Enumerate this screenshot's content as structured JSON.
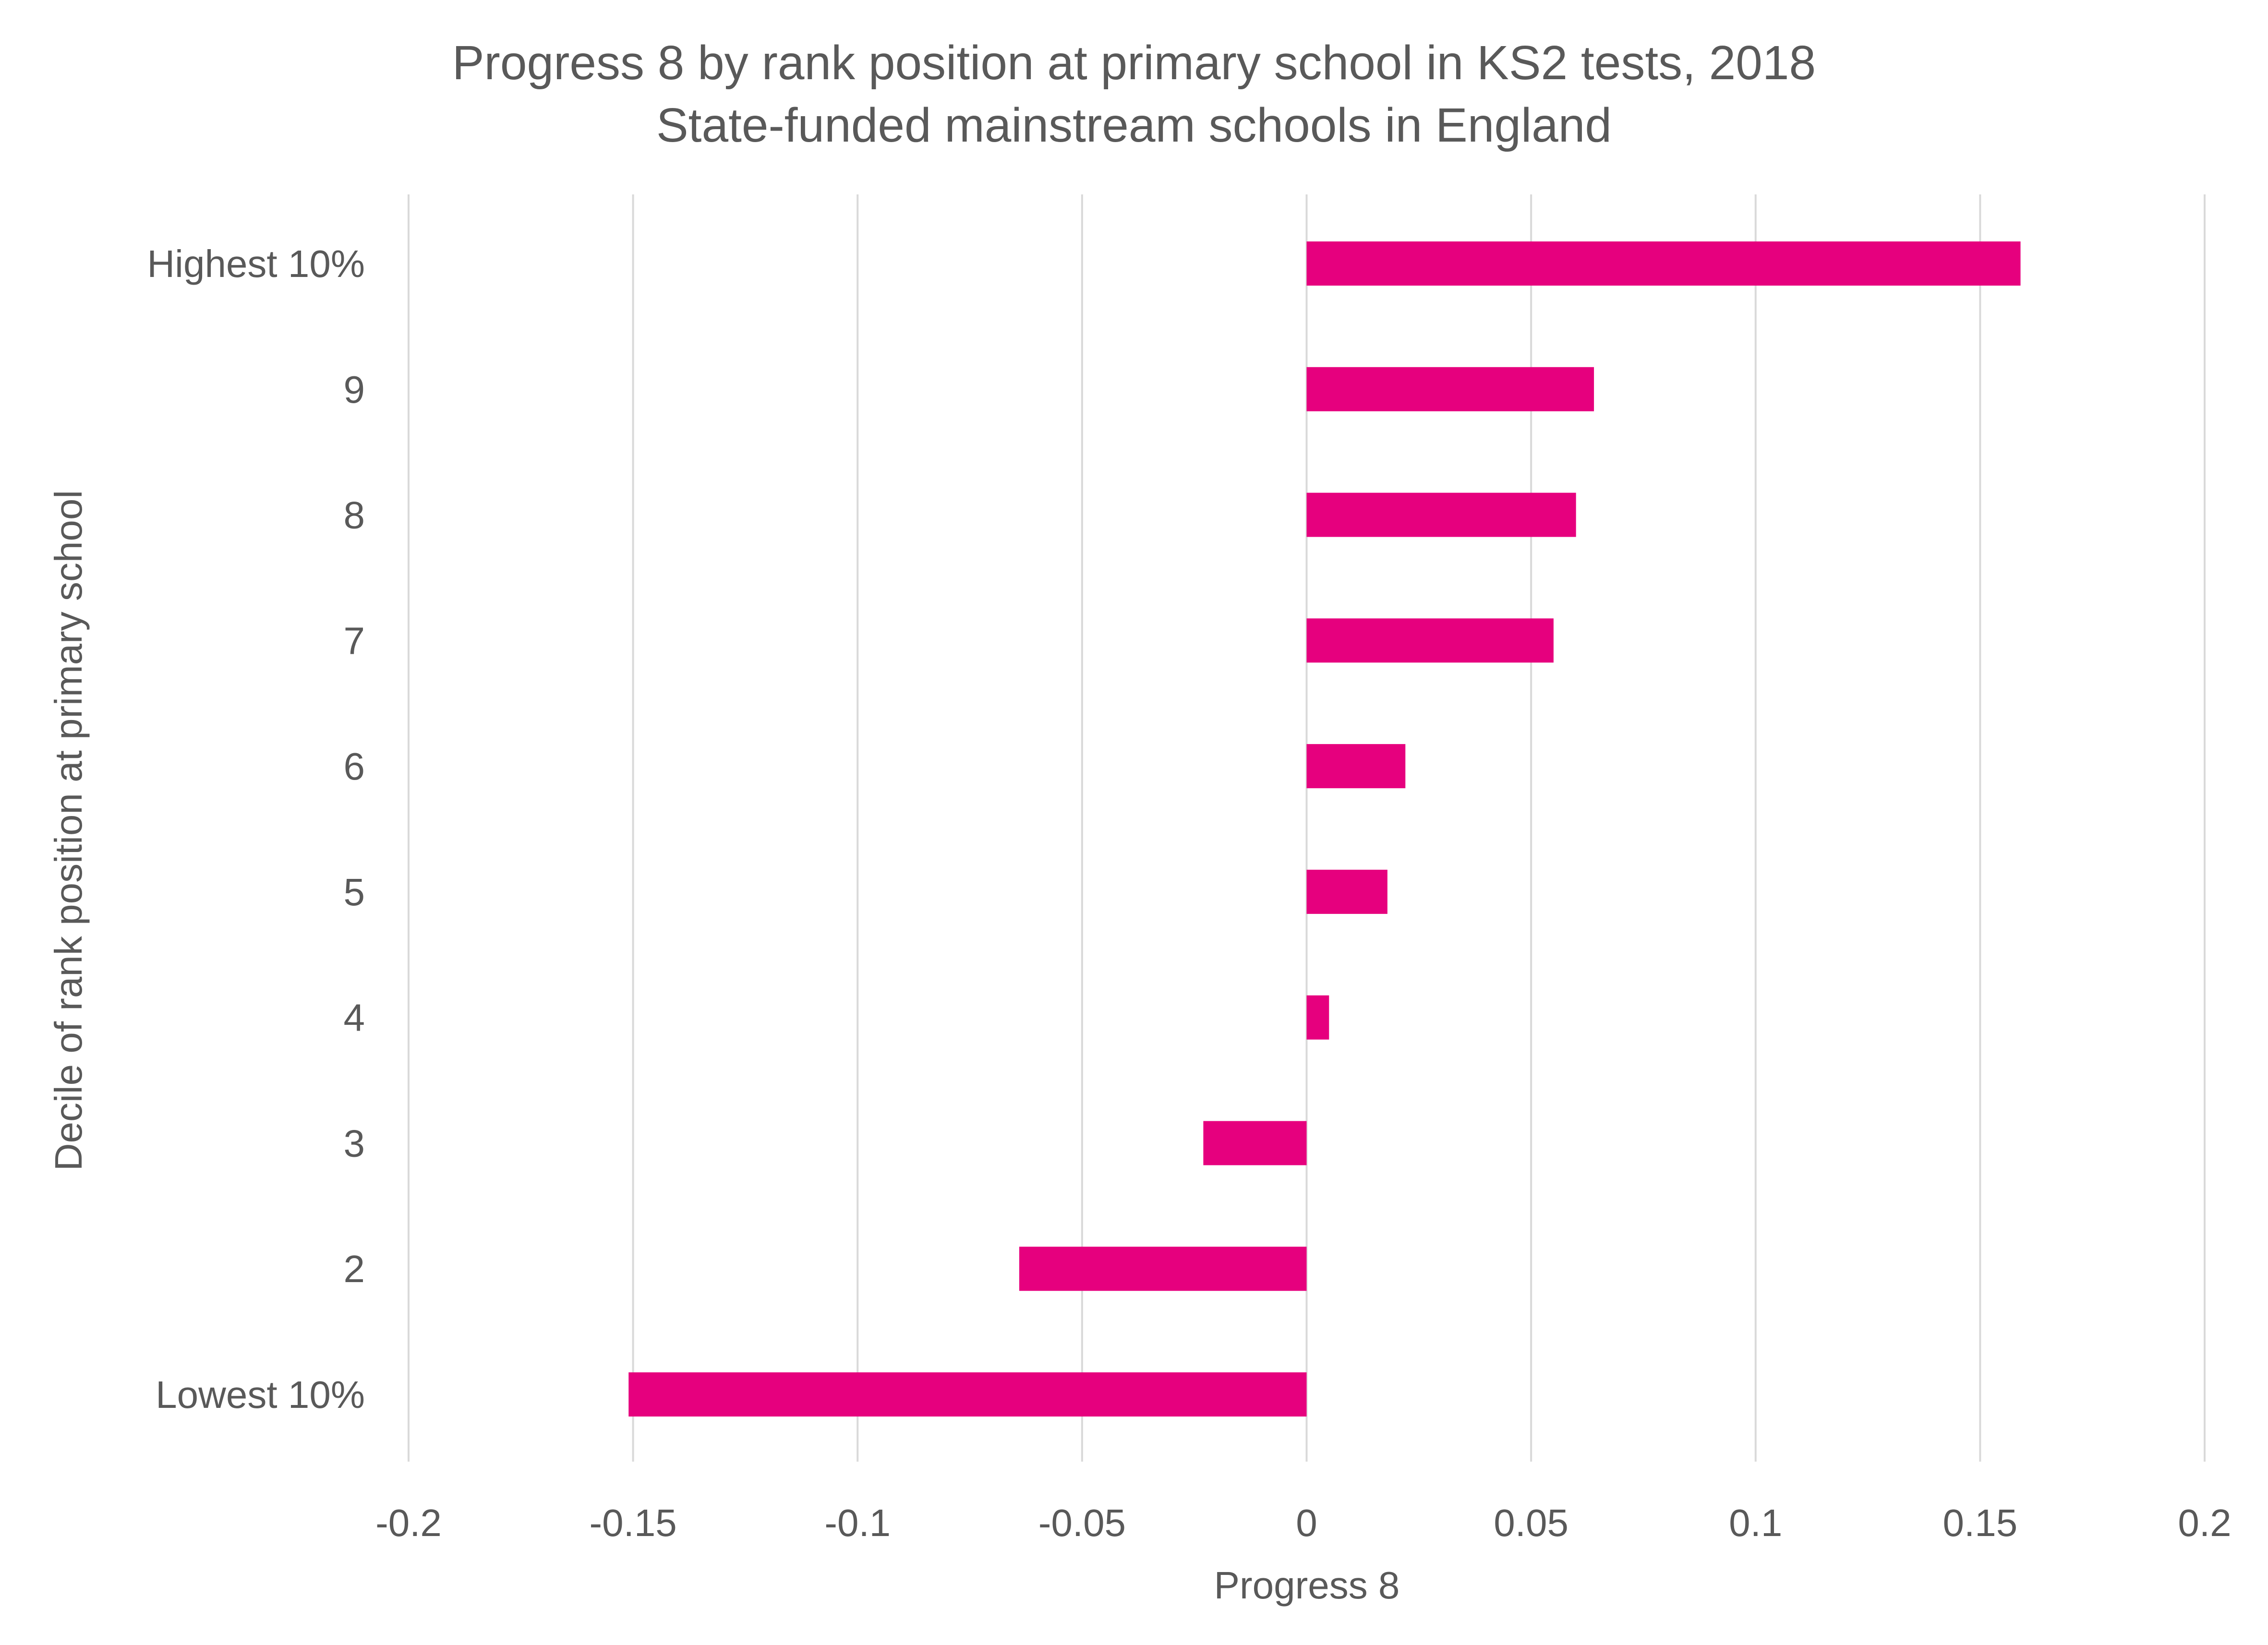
{
  "chart_data": {
    "type": "bar",
    "orientation": "horizontal",
    "title": "Progress 8 by rank position at primary school in KS2 tests,  2018",
    "subtitle": "State-funded mainstream schools in England",
    "xlabel": "Progress 8",
    "ylabel": "Decile of rank position at primary school",
    "xlim": [
      -0.2,
      0.2
    ],
    "xticks": [
      -0.2,
      -0.15,
      -0.1,
      -0.05,
      0,
      0.05,
      0.1,
      0.15,
      0.2
    ],
    "xtick_labels": [
      "-0.2",
      "-0.15",
      "-0.1",
      "-0.05",
      "0",
      "0.05",
      "0.1",
      "0.15",
      "0.2"
    ],
    "grid": "vertical",
    "legend": "none",
    "bar_color": "#E6007E",
    "categories": [
      "Highest 10%",
      "9",
      "8",
      "7",
      "6",
      "5",
      "4",
      "3",
      "2",
      "Lowest 10%"
    ],
    "values": [
      0.159,
      0.064,
      0.06,
      0.055,
      0.022,
      0.018,
      0.005,
      -0.023,
      -0.064,
      -0.151
    ]
  }
}
